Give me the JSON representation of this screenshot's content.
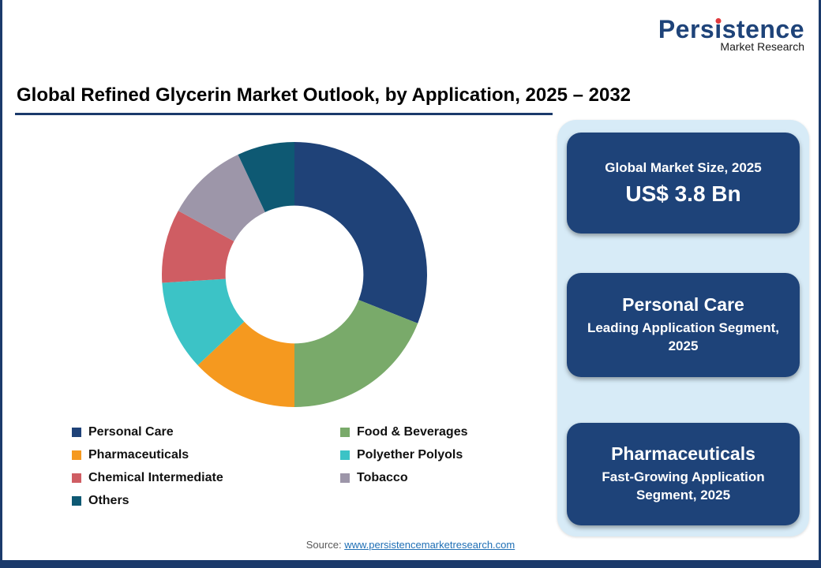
{
  "colors": {
    "navy": "#1E4379",
    "panel_bg": "#D7EBF7",
    "link_blue": "#1F6FB5",
    "logo_red": "#E03A3E",
    "frame": "#1B3A6B"
  },
  "brand": {
    "full_name": "Persistence",
    "name_pre": "Pers",
    "name_i": "ı",
    "name_post": "stence",
    "subtitle": "Market Research"
  },
  "title": "Global Refined Glycerin Market Outlook, by Application, 2025 – 2032",
  "chart_data": {
    "type": "pie",
    "subtype": "donut",
    "title": "Global Refined Glycerin Market Outlook, by Application, 2025 – 2032",
    "categories": [
      "Personal Care",
      "Food & Beverages",
      "Pharmaceuticals",
      "Polyether Polyols",
      "Chemical Intermediate",
      "Tobacco",
      "Others"
    ],
    "values": [
      31,
      19,
      13,
      11,
      9,
      10,
      7
    ],
    "colors": [
      "#1F4278",
      "#79AA6A",
      "#F5991F",
      "#3CC3C6",
      "#CF5D63",
      "#9D96A9",
      "#0E5973"
    ],
    "start_angle_deg": 0,
    "direction": "clockwise",
    "inner_radius_ratio": 0.52,
    "legend_position": "bottom"
  },
  "panel": {
    "cards": [
      {
        "top": "Global Market Size, 2025",
        "bottom": "US$ 3.8 Bn"
      },
      {
        "top": "Personal Care",
        "bottom": "Leading Application Segment, 2025"
      },
      {
        "top": "Pharmaceuticals",
        "bottom": "Fast-Growing Application Segment, 2025"
      }
    ]
  },
  "source": {
    "label": "Source:",
    "link": "www.persistencemarketresearch.com"
  }
}
